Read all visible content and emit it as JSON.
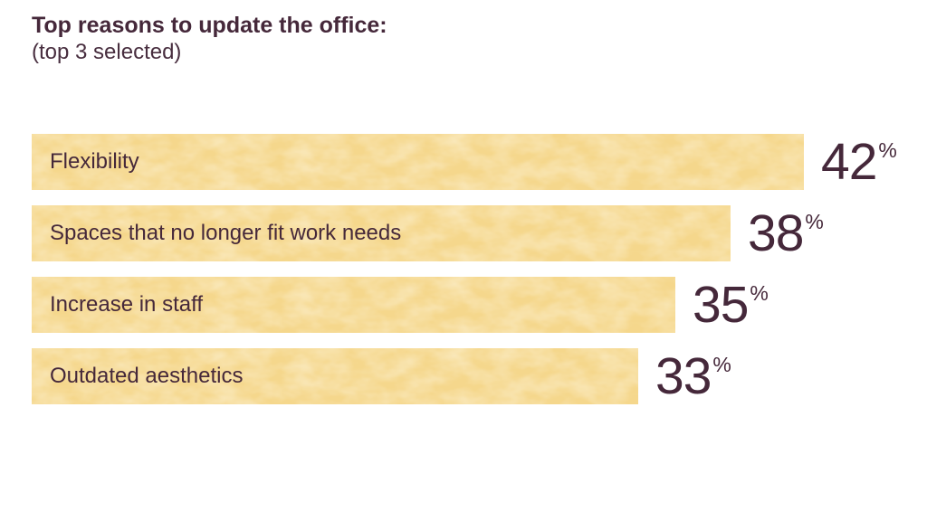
{
  "title": "Top reasons to update the office:",
  "subtitle": "(top 3 selected)",
  "colors": {
    "background": "#ffffff",
    "bar_fill": "#f5d78c",
    "bar_texture_highlight": "#fbe7b4",
    "text": "#45283a"
  },
  "chart_data": {
    "type": "bar",
    "orientation": "horizontal",
    "title": "Top reasons to update the office:",
    "subtitle": "(top 3 selected)",
    "categories": [
      "Flexibility",
      "Spaces that no longer fit work needs",
      "Increase in staff",
      "Outdated aesthetics"
    ],
    "values": [
      42,
      38,
      35,
      33
    ],
    "value_suffix": "%",
    "xlim": [
      0,
      42
    ],
    "grid": false,
    "legend": false,
    "value_label_position": "right-of-bar",
    "category_label_position": "inside-bar-left"
  }
}
